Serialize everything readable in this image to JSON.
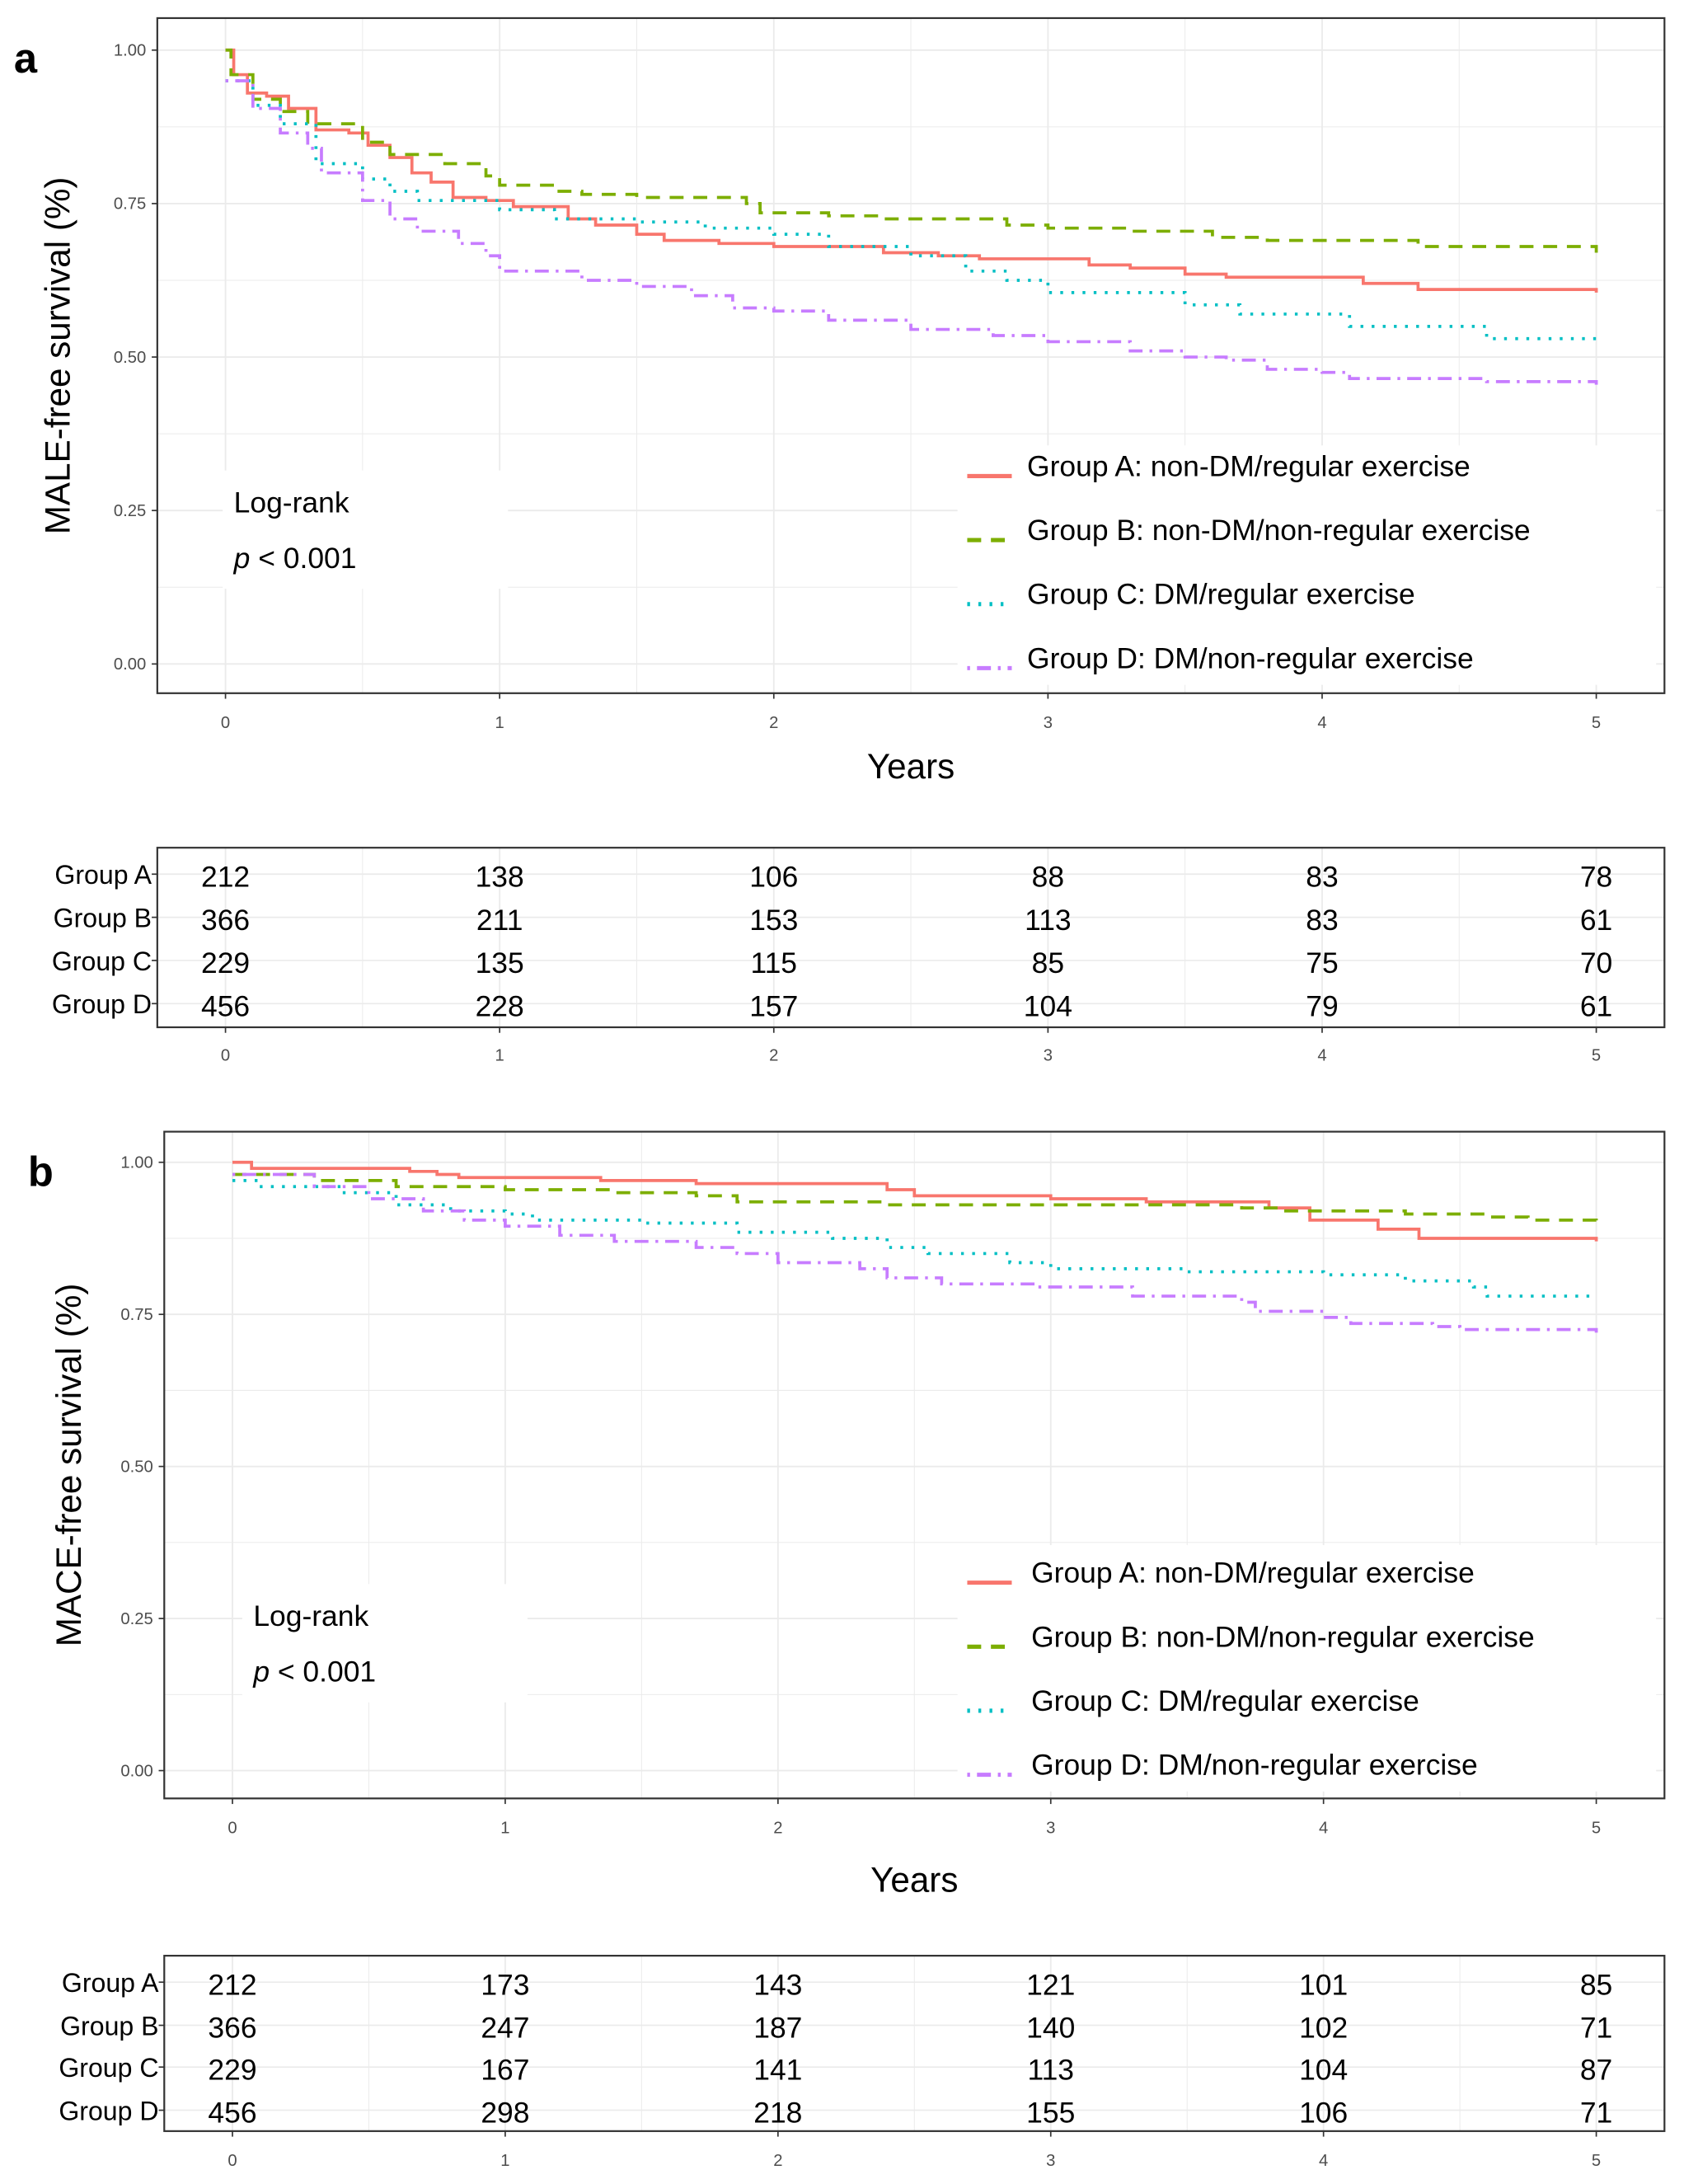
{
  "chart_data": [
    {
      "type": "line",
      "panel_label": "a",
      "title": "",
      "xlabel": "Years",
      "ylabel": "MALE-free survival (%)",
      "xlim": [
        0,
        5
      ],
      "ylim": [
        0,
        1
      ],
      "x_ticks": [
        "0",
        "1",
        "2",
        "3",
        "4",
        "5"
      ],
      "y_ticks": [
        "0.00",
        "0.25",
        "0.50",
        "0.75",
        "1.00"
      ],
      "grid": true,
      "legend_position": "bottom-right",
      "annotation": {
        "line1": "Log-rank",
        "p_symbol": "p",
        "p_text": " < 0.001"
      },
      "series": [
        {
          "name": "Group A: non-DM/regular exercise",
          "color": "#F8766D",
          "style": "solid",
          "points": [
            [
              0,
              1.0
            ],
            [
              0.03,
              0.96
            ],
            [
              0.08,
              0.93
            ],
            [
              0.15,
              0.925
            ],
            [
              0.23,
              0.905
            ],
            [
              0.33,
              0.87
            ],
            [
              0.45,
              0.865
            ],
            [
              0.52,
              0.845
            ],
            [
              0.6,
              0.825
            ],
            [
              0.68,
              0.8
            ],
            [
              0.75,
              0.785
            ],
            [
              0.83,
              0.76
            ],
            [
              0.95,
              0.755
            ],
            [
              1.05,
              0.745
            ],
            [
              1.25,
              0.725
            ],
            [
              1.35,
              0.715
            ],
            [
              1.5,
              0.7
            ],
            [
              1.6,
              0.69
            ],
            [
              1.8,
              0.685
            ],
            [
              2.0,
              0.68
            ],
            [
              2.4,
              0.67
            ],
            [
              2.6,
              0.665
            ],
            [
              2.75,
              0.66
            ],
            [
              3.15,
              0.65
            ],
            [
              3.3,
              0.645
            ],
            [
              3.5,
              0.635
            ],
            [
              3.65,
              0.63
            ],
            [
              4.15,
              0.62
            ],
            [
              4.35,
              0.61
            ],
            [
              5,
              0.605
            ]
          ]
        },
        {
          "name": "Group B: non-DM/non-regular exercise",
          "color": "#7CAE00",
          "style": "dashed",
          "points": [
            [
              0,
              1.0
            ],
            [
              0.02,
              0.96
            ],
            [
              0.1,
              0.92
            ],
            [
              0.2,
              0.9
            ],
            [
              0.3,
              0.88
            ],
            [
              0.5,
              0.85
            ],
            [
              0.6,
              0.83
            ],
            [
              0.8,
              0.815
            ],
            [
              0.95,
              0.795
            ],
            [
              1.0,
              0.78
            ],
            [
              1.2,
              0.77
            ],
            [
              1.3,
              0.765
            ],
            [
              1.5,
              0.76
            ],
            [
              1.9,
              0.75
            ],
            [
              1.95,
              0.735
            ],
            [
              2.2,
              0.73
            ],
            [
              2.4,
              0.725
            ],
            [
              2.85,
              0.715
            ],
            [
              3.0,
              0.71
            ],
            [
              3.3,
              0.705
            ],
            [
              3.6,
              0.695
            ],
            [
              3.8,
              0.69
            ],
            [
              4.35,
              0.68
            ],
            [
              4.6,
              0.68
            ],
            [
              5,
              0.67
            ]
          ]
        },
        {
          "name": "Group C: DM/regular exercise",
          "color": "#00BFC4",
          "style": "dotted",
          "points": [
            [
              0,
              0.95
            ],
            [
              0.1,
              0.91
            ],
            [
              0.2,
              0.88
            ],
            [
              0.33,
              0.815
            ],
            [
              0.5,
              0.79
            ],
            [
              0.6,
              0.77
            ],
            [
              0.7,
              0.755
            ],
            [
              1.0,
              0.74
            ],
            [
              1.2,
              0.725
            ],
            [
              1.5,
              0.72
            ],
            [
              1.75,
              0.71
            ],
            [
              2.0,
              0.7
            ],
            [
              2.2,
              0.68
            ],
            [
              2.5,
              0.665
            ],
            [
              2.7,
              0.64
            ],
            [
              2.85,
              0.625
            ],
            [
              3.0,
              0.605
            ],
            [
              3.5,
              0.585
            ],
            [
              3.7,
              0.57
            ],
            [
              4.1,
              0.55
            ],
            [
              4.6,
              0.53
            ],
            [
              5,
              0.525
            ]
          ]
        },
        {
          "name": "Group D: DM/non-regular exercise",
          "color": "#C77CFF",
          "style": "dotdash",
          "points": [
            [
              0,
              0.95
            ],
            [
              0.1,
              0.905
            ],
            [
              0.2,
              0.865
            ],
            [
              0.3,
              0.84
            ],
            [
              0.35,
              0.8
            ],
            [
              0.5,
              0.755
            ],
            [
              0.6,
              0.725
            ],
            [
              0.7,
              0.705
            ],
            [
              0.85,
              0.685
            ],
            [
              0.95,
              0.665
            ],
            [
              1.0,
              0.64
            ],
            [
              1.3,
              0.625
            ],
            [
              1.5,
              0.615
            ],
            [
              1.7,
              0.6
            ],
            [
              1.85,
              0.58
            ],
            [
              2.0,
              0.575
            ],
            [
              2.2,
              0.56
            ],
            [
              2.5,
              0.545
            ],
            [
              2.8,
              0.535
            ],
            [
              3.0,
              0.525
            ],
            [
              3.3,
              0.51
            ],
            [
              3.5,
              0.5
            ],
            [
              3.65,
              0.495
            ],
            [
              3.8,
              0.48
            ],
            [
              4.0,
              0.475
            ],
            [
              4.1,
              0.465
            ],
            [
              4.6,
              0.46
            ],
            [
              5,
              0.455
            ]
          ]
        }
      ],
      "risk_table": {
        "rows": [
          "Group A",
          "Group B",
          "Group C",
          "Group D"
        ],
        "times": [
          "0",
          "1",
          "2",
          "3",
          "4",
          "5"
        ],
        "values": [
          [
            212,
            138,
            106,
            88,
            83,
            78
          ],
          [
            366,
            211,
            153,
            113,
            83,
            61
          ],
          [
            229,
            135,
            115,
            85,
            75,
            70
          ],
          [
            456,
            228,
            157,
            104,
            79,
            61
          ]
        ]
      }
    },
    {
      "type": "line",
      "panel_label": "b",
      "title": "",
      "xlabel": "Years",
      "ylabel": "MACE-free survival (%)",
      "xlim": [
        0,
        5
      ],
      "ylim": [
        0,
        1
      ],
      "x_ticks": [
        "0",
        "1",
        "2",
        "3",
        "4",
        "5"
      ],
      "y_ticks": [
        "0.00",
        "0.25",
        "0.50",
        "0.75",
        "1.00"
      ],
      "grid": true,
      "legend_position": "bottom-right",
      "annotation": {
        "line1": "Log-rank",
        "p_symbol": "p",
        "p_text": " < 0.001"
      },
      "series": [
        {
          "name": "Group A: non-DM/regular exercise",
          "color": "#F8766D",
          "style": "solid",
          "points": [
            [
              0,
              1.0
            ],
            [
              0.07,
              0.99
            ],
            [
              0.65,
              0.985
            ],
            [
              0.75,
              0.98
            ],
            [
              0.83,
              0.975
            ],
            [
              1.35,
              0.97
            ],
            [
              1.7,
              0.965
            ],
            [
              2.4,
              0.955
            ],
            [
              2.5,
              0.945
            ],
            [
              3.0,
              0.94
            ],
            [
              3.35,
              0.935
            ],
            [
              3.8,
              0.925
            ],
            [
              3.95,
              0.905
            ],
            [
              4.2,
              0.89
            ],
            [
              4.35,
              0.875
            ],
            [
              5,
              0.87
            ]
          ]
        },
        {
          "name": "Group B: non-DM/non-regular exercise",
          "color": "#7CAE00",
          "style": "dashed",
          "points": [
            [
              0,
              0.98
            ],
            [
              0.3,
              0.97
            ],
            [
              0.6,
              0.96
            ],
            [
              1.0,
              0.955
            ],
            [
              1.4,
              0.95
            ],
            [
              1.7,
              0.945
            ],
            [
              1.85,
              0.935
            ],
            [
              2.4,
              0.93
            ],
            [
              3.0,
              0.93
            ],
            [
              3.7,
              0.925
            ],
            [
              3.85,
              0.92
            ],
            [
              4.3,
              0.915
            ],
            [
              4.6,
              0.91
            ],
            [
              4.75,
              0.905
            ],
            [
              5,
              0.9
            ]
          ]
        },
        {
          "name": "Group C: DM/regular exercise",
          "color": "#00BFC4",
          "style": "dotted",
          "points": [
            [
              0,
              0.97
            ],
            [
              0.1,
              0.96
            ],
            [
              0.4,
              0.95
            ],
            [
              0.6,
              0.93
            ],
            [
              0.8,
              0.92
            ],
            [
              1.0,
              0.915
            ],
            [
              1.1,
              0.905
            ],
            [
              1.5,
              0.9
            ],
            [
              1.85,
              0.885
            ],
            [
              2.2,
              0.875
            ],
            [
              2.4,
              0.86
            ],
            [
              2.55,
              0.85
            ],
            [
              2.85,
              0.835
            ],
            [
              3.0,
              0.825
            ],
            [
              3.5,
              0.82
            ],
            [
              4.0,
              0.815
            ],
            [
              4.3,
              0.805
            ],
            [
              4.55,
              0.795
            ],
            [
              4.6,
              0.78
            ],
            [
              5,
              0.78
            ]
          ]
        },
        {
          "name": "Group D: DM/non-regular exercise",
          "color": "#C77CFF",
          "style": "dotdash",
          "points": [
            [
              0,
              0.98
            ],
            [
              0.3,
              0.96
            ],
            [
              0.5,
              0.94
            ],
            [
              0.7,
              0.92
            ],
            [
              0.85,
              0.905
            ],
            [
              1.0,
              0.895
            ],
            [
              1.2,
              0.88
            ],
            [
              1.4,
              0.87
            ],
            [
              1.7,
              0.86
            ],
            [
              1.85,
              0.85
            ],
            [
              2.0,
              0.835
            ],
            [
              2.3,
              0.825
            ],
            [
              2.4,
              0.81
            ],
            [
              2.6,
              0.8
            ],
            [
              2.95,
              0.795
            ],
            [
              3.3,
              0.78
            ],
            [
              3.7,
              0.77
            ],
            [
              3.75,
              0.755
            ],
            [
              4.0,
              0.745
            ],
            [
              4.1,
              0.735
            ],
            [
              4.4,
              0.73
            ],
            [
              4.5,
              0.725
            ],
            [
              5,
              0.72
            ]
          ]
        }
      ],
      "risk_table": {
        "rows": [
          "Group A",
          "Group B",
          "Group C",
          "Group D"
        ],
        "times": [
          "0",
          "1",
          "2",
          "3",
          "4",
          "5"
        ],
        "values": [
          [
            212,
            173,
            143,
            121,
            101,
            85
          ],
          [
            366,
            247,
            187,
            140,
            102,
            71
          ],
          [
            229,
            167,
            141,
            113,
            104,
            87
          ],
          [
            456,
            298,
            218,
            155,
            106,
            71
          ]
        ]
      }
    }
  ]
}
